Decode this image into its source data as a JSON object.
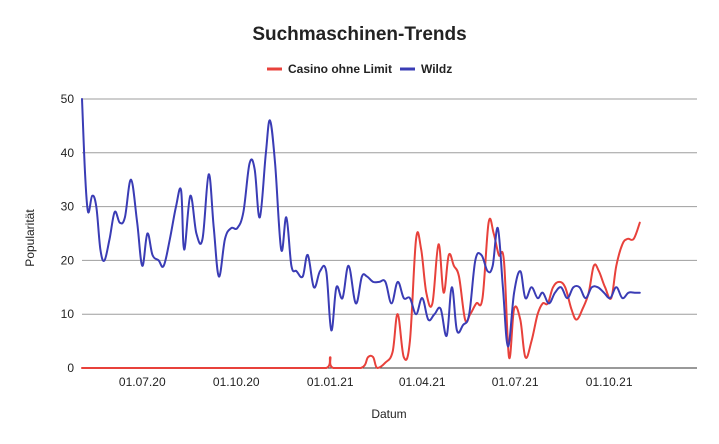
{
  "chart_data": {
    "type": "line",
    "title": "Suchmaschinen-Trends",
    "xlabel": "Datum",
    "ylabel": "Popularität",
    "ylim": [
      0,
      50
    ],
    "yticks": [
      0,
      10,
      20,
      30,
      40,
      50
    ],
    "xlim": [
      "2020-05-03",
      "2021-12-26"
    ],
    "xtick_labels": [
      {
        "date": "2020-07-01",
        "label": "01.07.20"
      },
      {
        "date": "2020-10-01",
        "label": "01.10.20"
      },
      {
        "date": "2021-01-01",
        "label": "01.01.21"
      },
      {
        "date": "2021-04-01",
        "label": "01.04.21"
      },
      {
        "date": "2021-07-01",
        "label": "01.07.21"
      },
      {
        "date": "2021-10-01",
        "label": "01.10.21"
      }
    ],
    "grid": true,
    "legend": "top",
    "series": [
      {
        "name": "Casino ohne Limit",
        "color": "#e8413b",
        "points": [
          [
            "2020-05-03",
            0
          ],
          [
            "2020-06-01",
            0
          ],
          [
            "2020-07-01",
            0
          ],
          [
            "2020-08-01",
            0
          ],
          [
            "2020-09-01",
            0
          ],
          [
            "2020-10-01",
            0
          ],
          [
            "2020-11-01",
            0
          ],
          [
            "2020-12-01",
            0
          ],
          [
            "2020-12-28",
            0
          ],
          [
            "2021-01-01",
            2
          ],
          [
            "2021-01-04",
            0
          ],
          [
            "2021-01-31",
            0
          ],
          [
            "2021-02-07",
            2
          ],
          [
            "2021-02-12",
            2
          ],
          [
            "2021-02-16",
            0
          ],
          [
            "2021-02-24",
            1
          ],
          [
            "2021-03-03",
            3
          ],
          [
            "2021-03-08",
            10
          ],
          [
            "2021-03-14",
            2
          ],
          [
            "2021-03-20",
            5
          ],
          [
            "2021-03-26",
            24
          ],
          [
            "2021-03-31",
            22
          ],
          [
            "2021-04-05",
            14
          ],
          [
            "2021-04-11",
            12
          ],
          [
            "2021-04-17",
            23
          ],
          [
            "2021-04-22",
            14
          ],
          [
            "2021-04-27",
            21
          ],
          [
            "2021-05-02",
            19
          ],
          [
            "2021-05-07",
            17
          ],
          [
            "2021-05-13",
            9
          ],
          [
            "2021-05-18",
            10
          ],
          [
            "2021-05-24",
            12
          ],
          [
            "2021-05-30",
            13
          ],
          [
            "2021-06-05",
            27
          ],
          [
            "2021-06-10",
            25
          ],
          [
            "2021-06-15",
            21
          ],
          [
            "2021-06-20",
            20
          ],
          [
            "2021-06-25",
            2
          ],
          [
            "2021-06-30",
            11
          ],
          [
            "2021-07-06",
            9
          ],
          [
            "2021-07-11",
            2
          ],
          [
            "2021-07-17",
            5
          ],
          [
            "2021-07-23",
            10
          ],
          [
            "2021-07-28",
            12
          ],
          [
            "2021-08-02",
            12
          ],
          [
            "2021-08-07",
            15
          ],
          [
            "2021-08-13",
            16
          ],
          [
            "2021-08-19",
            15
          ],
          [
            "2021-08-25",
            11
          ],
          [
            "2021-08-30",
            9
          ],
          [
            "2021-09-05",
            11
          ],
          [
            "2021-09-11",
            14
          ],
          [
            "2021-09-16",
            19
          ],
          [
            "2021-09-21",
            18
          ],
          [
            "2021-09-27",
            15
          ],
          [
            "2021-10-03",
            13
          ],
          [
            "2021-10-08",
            19
          ],
          [
            "2021-10-14",
            23
          ],
          [
            "2021-10-19",
            24
          ],
          [
            "2021-10-25",
            24
          ],
          [
            "2021-10-31",
            27
          ]
        ]
      },
      {
        "name": "Wildz",
        "color": "#3a3cb5",
        "points": [
          [
            "2020-05-03",
            50
          ],
          [
            "2020-05-06",
            36
          ],
          [
            "2020-05-09",
            29
          ],
          [
            "2020-05-13",
            32
          ],
          [
            "2020-05-17",
            30
          ],
          [
            "2020-05-21",
            22
          ],
          [
            "2020-05-25",
            20
          ],
          [
            "2020-05-30",
            24
          ],
          [
            "2020-06-04",
            29
          ],
          [
            "2020-06-09",
            27
          ],
          [
            "2020-06-14",
            28
          ],
          [
            "2020-06-20",
            35
          ],
          [
            "2020-06-26",
            27
          ],
          [
            "2020-07-01",
            19
          ],
          [
            "2020-07-06",
            25
          ],
          [
            "2020-07-11",
            21
          ],
          [
            "2020-07-17",
            20
          ],
          [
            "2020-07-22",
            19
          ],
          [
            "2020-07-28",
            24
          ],
          [
            "2020-08-03",
            30
          ],
          [
            "2020-08-08",
            33
          ],
          [
            "2020-08-11",
            22
          ],
          [
            "2020-08-17",
            32
          ],
          [
            "2020-08-23",
            25
          ],
          [
            "2020-08-29",
            24
          ],
          [
            "2020-09-04",
            36
          ],
          [
            "2020-09-09",
            26
          ],
          [
            "2020-09-14",
            17
          ],
          [
            "2020-09-20",
            24
          ],
          [
            "2020-09-26",
            26
          ],
          [
            "2020-10-02",
            26
          ],
          [
            "2020-10-08",
            29
          ],
          [
            "2020-10-14",
            38
          ],
          [
            "2020-10-19",
            37
          ],
          [
            "2020-10-24",
            28
          ],
          [
            "2020-10-30",
            40
          ],
          [
            "2020-11-03",
            46
          ],
          [
            "2020-11-08",
            38
          ],
          [
            "2020-11-14",
            22
          ],
          [
            "2020-11-19",
            28
          ],
          [
            "2020-11-24",
            19
          ],
          [
            "2020-11-29",
            18
          ],
          [
            "2020-12-05",
            17
          ],
          [
            "2020-12-10",
            21
          ],
          [
            "2020-12-16",
            15
          ],
          [
            "2020-12-22",
            18
          ],
          [
            "2020-12-28",
            18
          ],
          [
            "2021-01-02",
            7
          ],
          [
            "2021-01-07",
            15
          ],
          [
            "2021-01-13",
            13
          ],
          [
            "2021-01-19",
            19
          ],
          [
            "2021-01-26",
            12
          ],
          [
            "2021-02-01",
            17
          ],
          [
            "2021-02-06",
            17
          ],
          [
            "2021-02-12",
            16
          ],
          [
            "2021-02-18",
            16
          ],
          [
            "2021-02-24",
            16
          ],
          [
            "2021-03-02",
            12
          ],
          [
            "2021-03-08",
            16
          ],
          [
            "2021-03-14",
            13
          ],
          [
            "2021-03-20",
            13
          ],
          [
            "2021-03-26",
            10
          ],
          [
            "2021-04-01",
            13
          ],
          [
            "2021-04-07",
            9
          ],
          [
            "2021-04-13",
            10
          ],
          [
            "2021-04-19",
            11
          ],
          [
            "2021-04-25",
            6
          ],
          [
            "2021-04-30",
            15
          ],
          [
            "2021-05-05",
            7
          ],
          [
            "2021-05-11",
            8
          ],
          [
            "2021-05-17",
            10
          ],
          [
            "2021-05-23",
            20
          ],
          [
            "2021-05-29",
            21
          ],
          [
            "2021-06-04",
            18
          ],
          [
            "2021-06-09",
            19
          ],
          [
            "2021-06-14",
            26
          ],
          [
            "2021-06-19",
            15
          ],
          [
            "2021-06-24",
            4
          ],
          [
            "2021-06-30",
            14
          ],
          [
            "2021-07-06",
            18
          ],
          [
            "2021-07-11",
            13
          ],
          [
            "2021-07-17",
            15
          ],
          [
            "2021-07-23",
            13
          ],
          [
            "2021-07-28",
            14
          ],
          [
            "2021-08-03",
            12
          ],
          [
            "2021-08-09",
            14
          ],
          [
            "2021-08-15",
            15
          ],
          [
            "2021-08-21",
            13
          ],
          [
            "2021-08-27",
            15
          ],
          [
            "2021-09-02",
            15
          ],
          [
            "2021-09-08",
            13
          ],
          [
            "2021-09-14",
            15
          ],
          [
            "2021-09-20",
            15
          ],
          [
            "2021-09-26",
            14
          ],
          [
            "2021-10-02",
            13
          ],
          [
            "2021-10-08",
            15
          ],
          [
            "2021-10-14",
            13
          ],
          [
            "2021-10-20",
            14
          ],
          [
            "2021-10-26",
            14
          ],
          [
            "2021-10-31",
            14
          ]
        ]
      }
    ]
  }
}
